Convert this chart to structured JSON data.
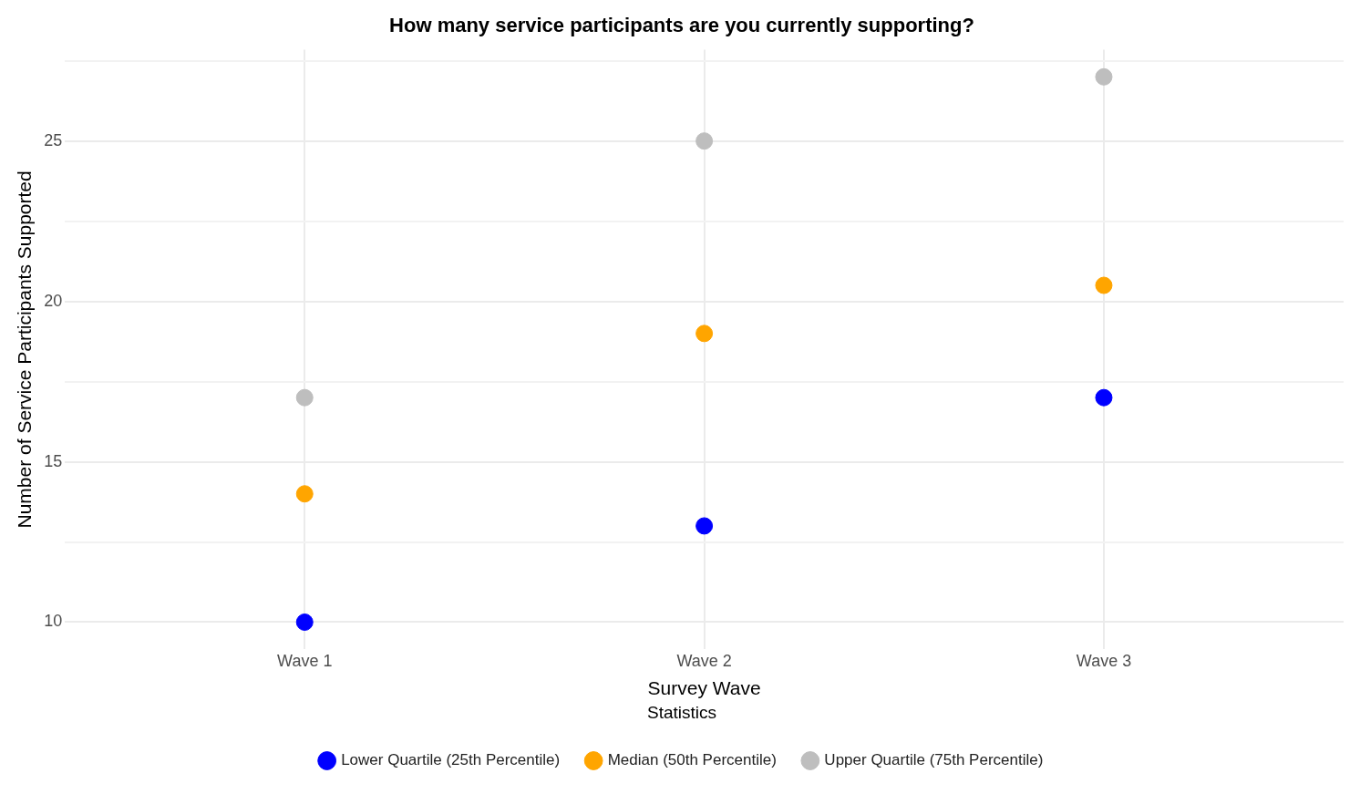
{
  "chart_data": {
    "type": "scatter",
    "title": "How many service participants are you currently supporting?",
    "xlabel": "Survey Wave",
    "ylabel": "Number of Service Participants Supported",
    "legend_title": "Statistics",
    "categories": [
      "Wave 1",
      "Wave 2",
      "Wave 3"
    ],
    "series": [
      {
        "name": "Lower Quartile (25th Percentile)",
        "color": "#0000ff",
        "values": [
          10,
          13,
          17
        ]
      },
      {
        "name": "Median (50th Percentile)",
        "color": "#ffa500",
        "values": [
          14,
          19,
          20.5
        ]
      },
      {
        "name": "Upper Quartile (75th Percentile)",
        "color": "#bebebe",
        "values": [
          17,
          25,
          27
        ]
      }
    ],
    "ylim": [
      9.15,
      27.85
    ],
    "yticks": [
      10,
      {
        "value": 12.5,
        "label": null
      },
      15,
      {
        "value": 17.5,
        "label": null
      },
      20,
      {
        "value": 22.5,
        "label": null
      },
      25,
      {
        "value": 27.5,
        "label": null
      }
    ],
    "grid": true,
    "legend": "bottom",
    "marker": "circle"
  }
}
